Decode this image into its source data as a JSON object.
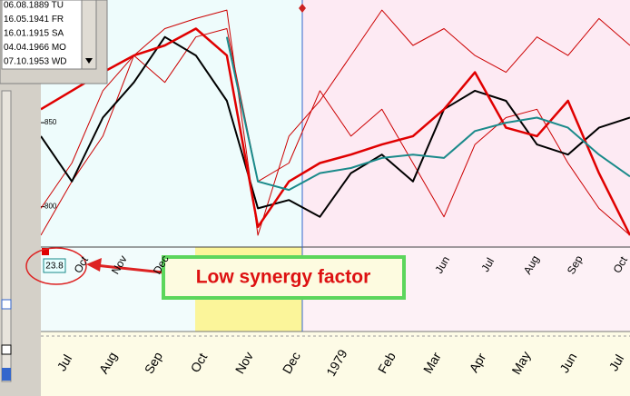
{
  "list_box": {
    "items": [
      "06.08.1889 TU",
      "16.05.1941 FR",
      "16.01.1915 SA",
      "04.04.1966 MO",
      "07.10.1953 WD"
    ]
  },
  "chart_data": {
    "type": "line",
    "ylim": [
      776,
      923
    ],
    "yticks": [
      800,
      850
    ],
    "series": [
      {
        "color": "#cc0000",
        "width": 1,
        "values": [
          783,
          815,
          842,
          890,
          906,
          912,
          917,
          783,
          842,
          863,
          890,
          917,
          896,
          906,
          890,
          880,
          901,
          890,
          912,
          896
        ]
      },
      {
        "color": "#cc0000",
        "width": 1,
        "values": [
          799,
          826,
          869,
          890,
          874,
          901,
          906,
          815,
          826,
          869,
          842,
          858,
          826,
          794,
          837,
          853,
          858,
          826,
          799,
          783
        ]
      },
      {
        "color": "#000000",
        "width": 2,
        "values": [
          842,
          815,
          853,
          874,
          901,
          890,
          863,
          799,
          804,
          794,
          820,
          831,
          815,
          858,
          869,
          863,
          837,
          831,
          847,
          853
        ]
      },
      {
        "color": "#e00000",
        "width": 2.5,
        "values": [
          858,
          869,
          880,
          890,
          896,
          906,
          890,
          788,
          815,
          826,
          831,
          837,
          842,
          858,
          880,
          847,
          842,
          863,
          820,
          783
        ]
      },
      {
        "color": "#1a8a8a",
        "width": 2,
        "values": [
          null,
          null,
          null,
          null,
          null,
          null,
          901,
          815,
          810,
          820,
          823,
          829,
          831,
          829,
          845,
          850,
          853,
          847,
          831,
          818
        ]
      }
    ]
  },
  "top_axis": {
    "labels": [
      "Oct",
      "Nov",
      "Dec",
      "Jun",
      "Jul",
      "Aug",
      "Sep",
      "Oct"
    ]
  },
  "bottom_axis": {
    "labels": [
      "Jul",
      "Aug",
      "Sep",
      "Oct",
      "Nov",
      "Dec",
      "1979",
      "Feb",
      "Mar",
      "Apr",
      "May",
      "Jun",
      "Jul"
    ]
  },
  "factor_box": {
    "value": "23.8"
  },
  "annotation": {
    "text": "Low synergy factor"
  }
}
